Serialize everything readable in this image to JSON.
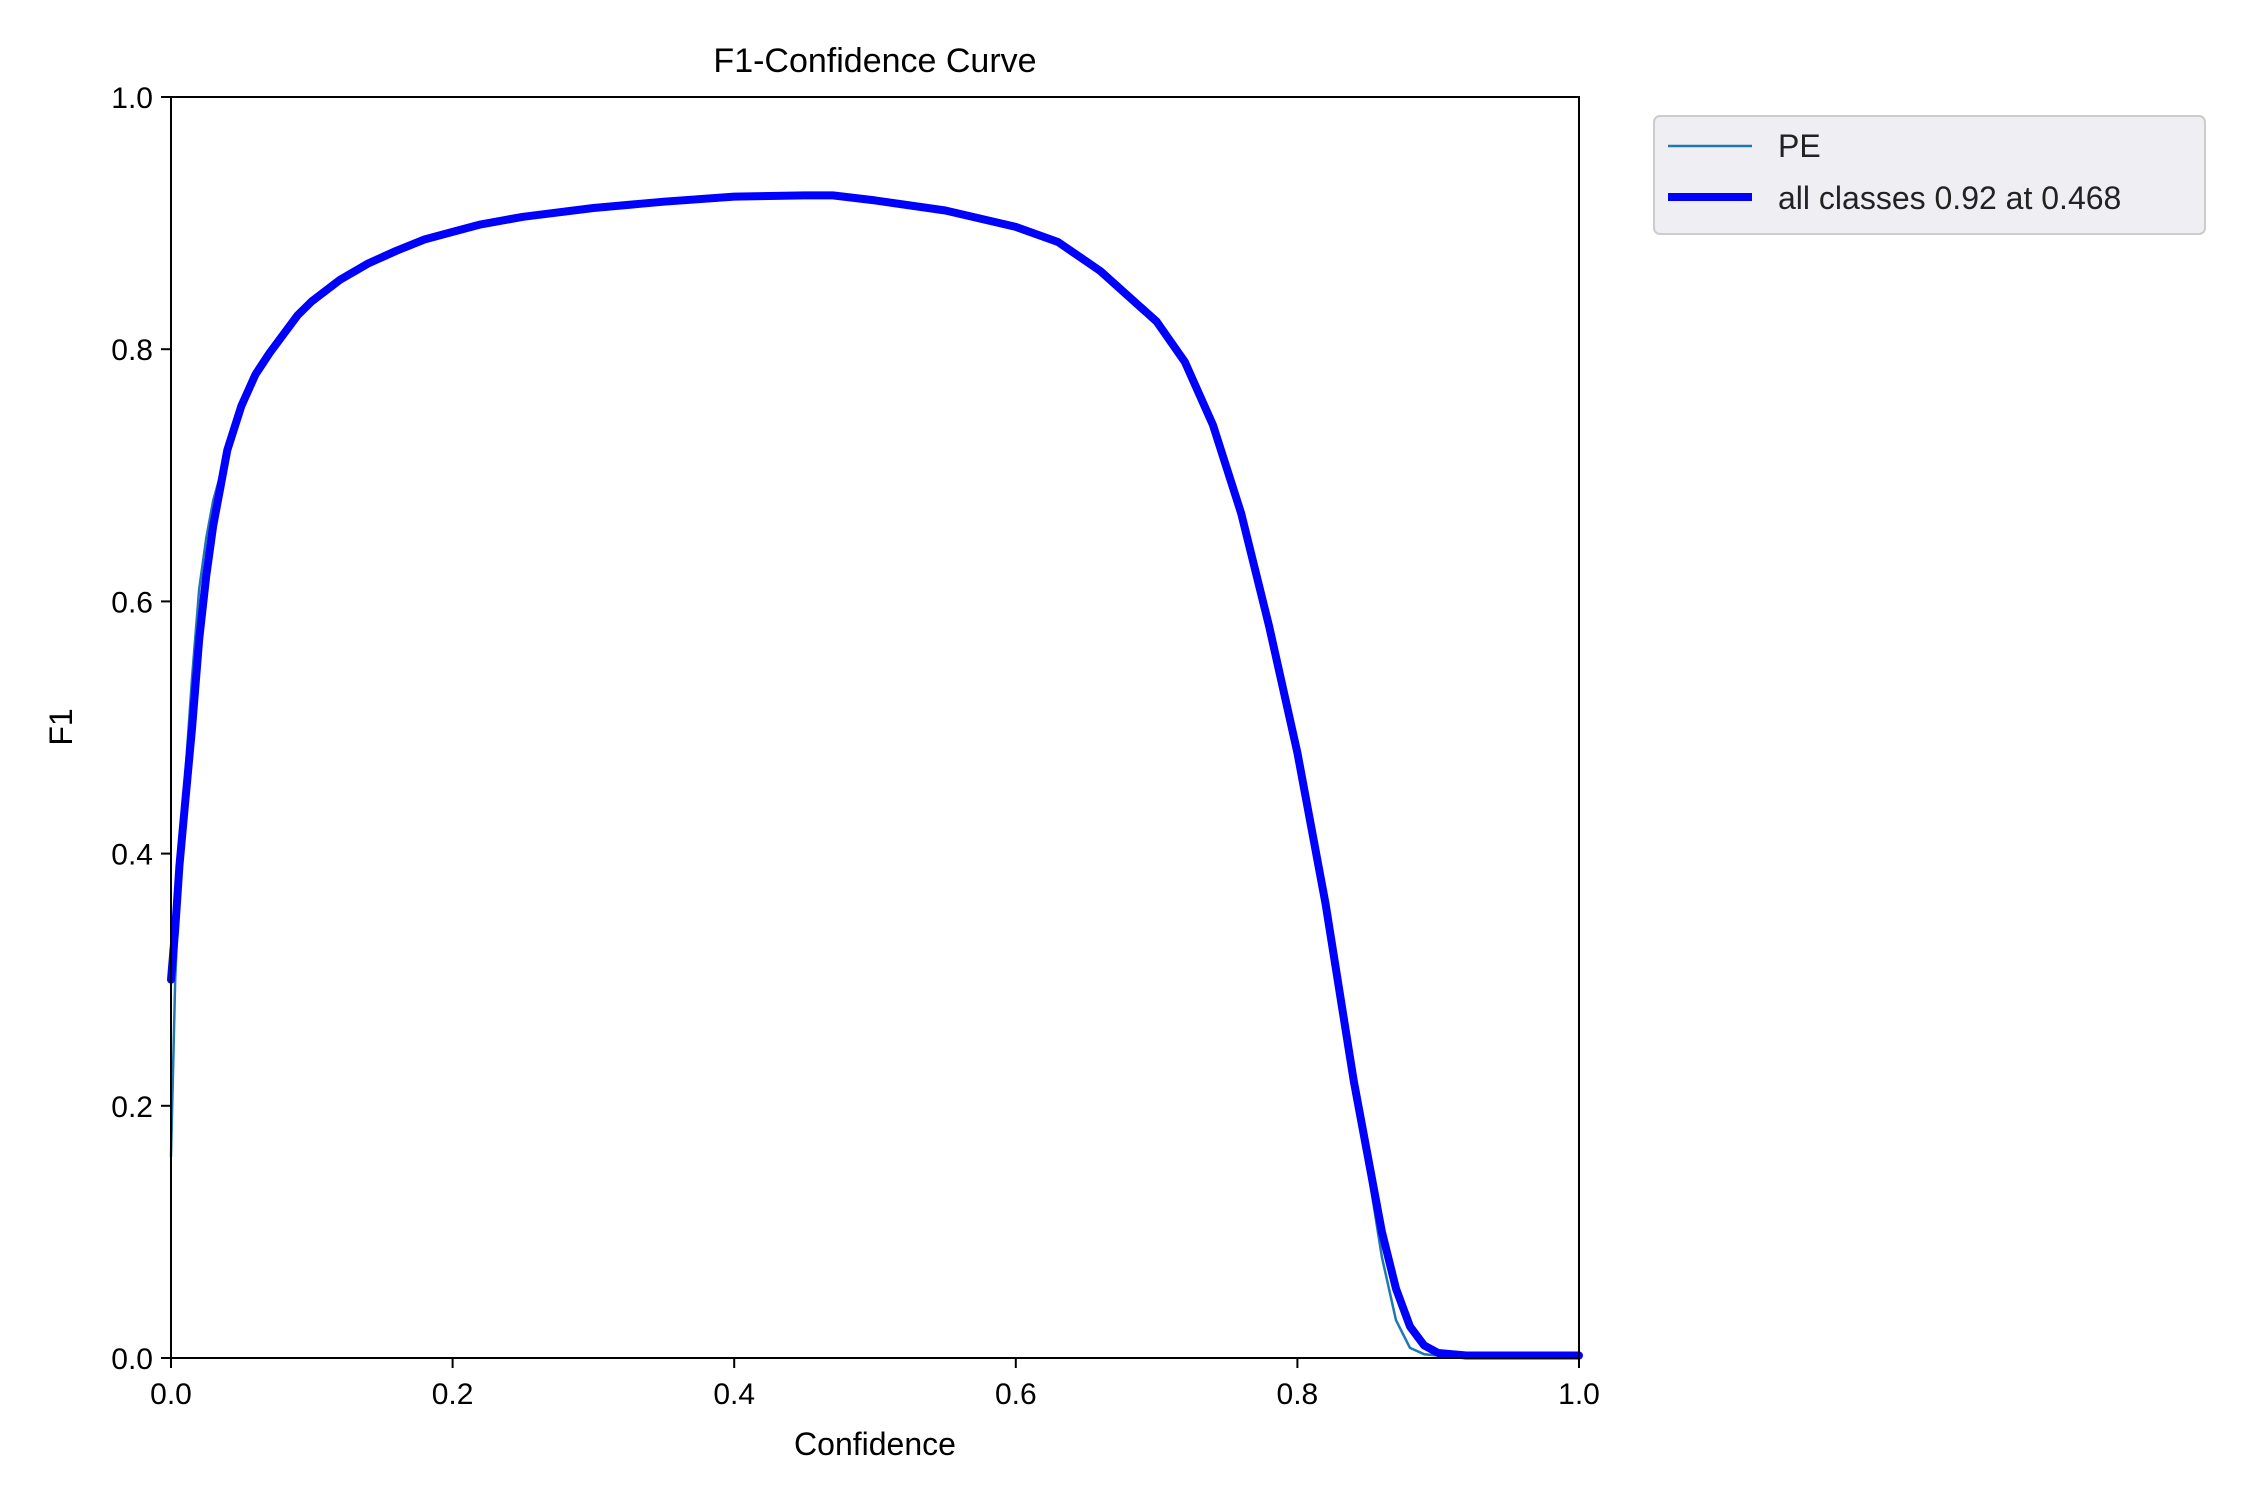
{
  "colors": {
    "series_pe": "#1f77b4",
    "series_all": "#0000ff",
    "legend_bg": "#eeeef3",
    "legend_border": "#cccccc"
  },
  "chart_data": {
    "type": "line",
    "title": "F1-Confidence Curve",
    "xlabel": "Confidence",
    "ylabel": "F1",
    "xlim": [
      0.0,
      1.0
    ],
    "ylim": [
      0.0,
      1.0
    ],
    "xticks": [
      "0.0",
      "0.2",
      "0.4",
      "0.6",
      "0.8",
      "1.0"
    ],
    "yticks": [
      "0.0",
      "0.2",
      "0.4",
      "0.6",
      "0.8",
      "1.0"
    ],
    "grid": false,
    "legend_position": "outside-top-right",
    "series": [
      {
        "name": "PE",
        "color": "#1f77b4",
        "x": [
          0.0,
          0.003,
          0.006,
          0.01,
          0.015,
          0.02,
          0.025,
          0.03,
          0.035,
          0.04,
          0.05,
          0.06,
          0.07,
          0.08,
          0.09,
          0.1,
          0.12,
          0.14,
          0.16,
          0.18,
          0.2,
          0.22,
          0.25,
          0.3,
          0.35,
          0.4,
          0.45,
          0.47,
          0.5,
          0.55,
          0.6,
          0.63,
          0.66,
          0.7,
          0.72,
          0.74,
          0.76,
          0.78,
          0.8,
          0.82,
          0.84,
          0.86,
          0.87,
          0.88,
          0.89,
          0.9,
          0.92,
          0.95,
          1.0
        ],
        "y": [
          0.16,
          0.3,
          0.38,
          0.46,
          0.54,
          0.61,
          0.65,
          0.68,
          0.7,
          0.72,
          0.76,
          0.78,
          0.8,
          0.815,
          0.83,
          0.84,
          0.855,
          0.868,
          0.878,
          0.887,
          0.893,
          0.899,
          0.905,
          0.912,
          0.917,
          0.921,
          0.922,
          0.922,
          0.918,
          0.91,
          0.897,
          0.885,
          0.862,
          0.822,
          0.79,
          0.74,
          0.67,
          0.58,
          0.48,
          0.36,
          0.22,
          0.08,
          0.03,
          0.008,
          0.003,
          0.002,
          0.002,
          0.002,
          0.002
        ]
      },
      {
        "name": "all classes 0.92 at 0.468",
        "color": "#0000ff",
        "x": [
          0.0,
          0.003,
          0.006,
          0.01,
          0.015,
          0.02,
          0.025,
          0.03,
          0.035,
          0.04,
          0.05,
          0.06,
          0.07,
          0.08,
          0.09,
          0.1,
          0.12,
          0.14,
          0.16,
          0.18,
          0.2,
          0.22,
          0.25,
          0.3,
          0.35,
          0.4,
          0.45,
          0.47,
          0.5,
          0.55,
          0.6,
          0.63,
          0.66,
          0.7,
          0.72,
          0.74,
          0.76,
          0.78,
          0.8,
          0.82,
          0.84,
          0.86,
          0.87,
          0.88,
          0.89,
          0.9,
          0.92,
          0.95,
          1.0
        ],
        "y": [
          0.3,
          0.34,
          0.39,
          0.44,
          0.5,
          0.57,
          0.62,
          0.66,
          0.69,
          0.72,
          0.755,
          0.78,
          0.797,
          0.812,
          0.827,
          0.838,
          0.855,
          0.868,
          0.878,
          0.887,
          0.893,
          0.899,
          0.905,
          0.912,
          0.917,
          0.921,
          0.922,
          0.922,
          0.918,
          0.91,
          0.897,
          0.885,
          0.862,
          0.822,
          0.79,
          0.74,
          0.67,
          0.58,
          0.48,
          0.36,
          0.22,
          0.1,
          0.055,
          0.025,
          0.01,
          0.004,
          0.002,
          0.002,
          0.002
        ]
      }
    ]
  }
}
